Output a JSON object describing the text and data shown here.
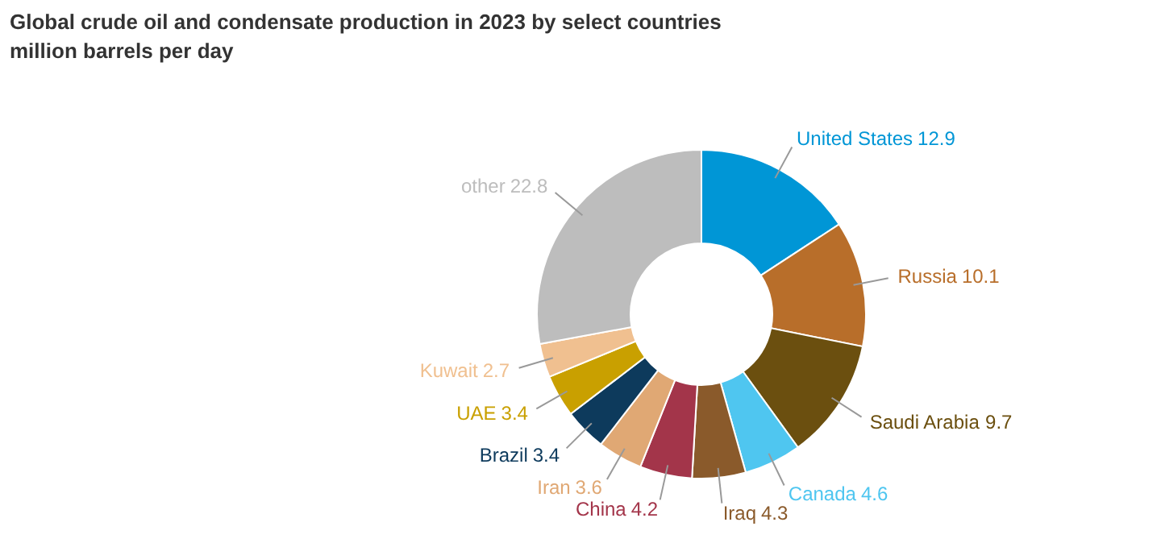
{
  "chart_data": {
    "type": "donut",
    "title": "Global crude oil and condensate production in 2023 by select countries",
    "subtitle": "million barrels per day",
    "categories": [
      "United States",
      "Russia",
      "Saudi Arabia",
      "Canada",
      "Iraq",
      "China",
      "Iran",
      "Brazil",
      "UAE",
      "Kuwait",
      "other"
    ],
    "values": [
      12.9,
      10.1,
      9.7,
      4.6,
      4.3,
      4.2,
      3.6,
      3.4,
      3.4,
      2.7,
      22.8
    ],
    "colors": [
      "#0096d6",
      "#b86e2a",
      "#6b4f0f",
      "#4fc6f0",
      "#8a5a2b",
      "#a3354a",
      "#e0a874",
      "#0d3a5c",
      "#c9a000",
      "#f0c090",
      "#bdbdbd"
    ],
    "data_labels": true,
    "legend": false
  }
}
